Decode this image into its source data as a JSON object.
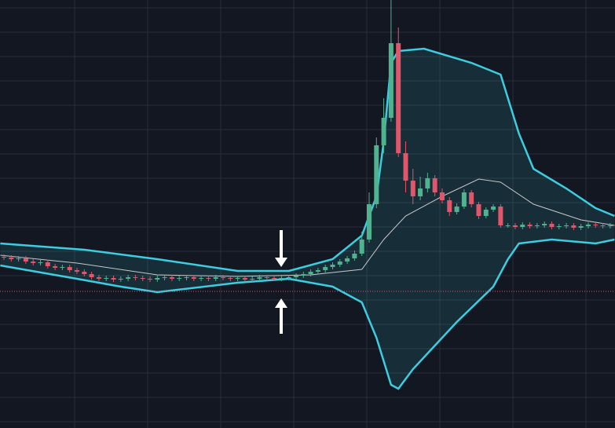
{
  "chart_data": {
    "type": "candlestick",
    "xlim": [
      -0.54,
      83.66
    ],
    "ylim": [
      0,
      545
    ],
    "grid": true,
    "up_color": "#4fb38f",
    "down_color": "#e0566a",
    "band_color": "#3ccde0",
    "middle_color": "#c8c8c8",
    "price_line": 174,
    "price_line_color": "#e0566a",
    "open": [
      218,
      217,
      215,
      216,
      212,
      210,
      211,
      206,
      204,
      205,
      201,
      199,
      196,
      192,
      190,
      191,
      189,
      190,
      192,
      191,
      190,
      189,
      191,
      192,
      190,
      191,
      192,
      190,
      191,
      190,
      192,
      191,
      190,
      191,
      189,
      190,
      192,
      191,
      190,
      191,
      192,
      194,
      196,
      199,
      201,
      205,
      208,
      212,
      216,
      222,
      240,
      285,
      360,
      395,
      490,
      350,
      315,
      295,
      305,
      318,
      300,
      290,
      275,
      282,
      300,
      285,
      270,
      278,
      282,
      258,
      258,
      256,
      259,
      257,
      258,
      260,
      256,
      257,
      258,
      255,
      257,
      259,
      258,
      257
    ],
    "high": [
      221,
      220,
      219,
      219,
      215,
      214,
      214,
      209,
      208,
      208,
      204,
      202,
      199,
      195,
      194,
      194,
      193,
      195,
      195,
      194,
      193,
      194,
      195,
      195,
      194,
      195,
      195,
      194,
      194,
      195,
      195,
      194,
      194,
      194,
      193,
      195,
      195,
      194,
      194,
      195,
      197,
      199,
      202,
      204,
      208,
      211,
      215,
      219,
      226,
      250,
      300,
      370,
      420,
      545,
      510,
      365,
      330,
      320,
      325,
      322,
      305,
      294,
      286,
      304,
      303,
      288,
      281,
      285,
      285,
      261,
      261,
      262,
      262,
      261,
      263,
      263,
      260,
      261,
      261,
      260,
      262,
      262,
      261,
      261
    ],
    "low": [
      214,
      212,
      212,
      209,
      207,
      207,
      203,
      201,
      201,
      198,
      196,
      193,
      189,
      187,
      187,
      186,
      186,
      187,
      188,
      187,
      186,
      186,
      188,
      187,
      187,
      188,
      187,
      187,
      187,
      187,
      188,
      187,
      187,
      186,
      186,
      187,
      188,
      187,
      187,
      188,
      189,
      191,
      193,
      196,
      198,
      202,
      205,
      209,
      213,
      219,
      236,
      280,
      350,
      390,
      345,
      300,
      285,
      290,
      300,
      295,
      286,
      270,
      272,
      279,
      281,
      266,
      267,
      275,
      255,
      255,
      253,
      253,
      254,
      254,
      255,
      253,
      253,
      254,
      252,
      252,
      254,
      255,
      254,
      254
    ],
    "close": [
      217,
      215,
      216,
      212,
      210,
      211,
      206,
      204,
      205,
      201,
      199,
      196,
      192,
      190,
      191,
      189,
      190,
      192,
      191,
      190,
      189,
      191,
      192,
      190,
      191,
      192,
      190,
      191,
      190,
      192,
      191,
      190,
      191,
      189,
      190,
      192,
      191,
      190,
      191,
      192,
      194,
      196,
      199,
      201,
      205,
      208,
      212,
      216,
      222,
      240,
      285,
      360,
      395,
      490,
      350,
      315,
      295,
      305,
      318,
      300,
      290,
      275,
      282,
      300,
      285,
      270,
      278,
      282,
      258,
      258,
      256,
      259,
      257,
      258,
      260,
      256,
      257,
      258,
      255,
      257,
      259,
      258,
      257,
      258
    ],
    "upper_band": {
      "x": [
        -0.5,
        11,
        21,
        32,
        39,
        45,
        49,
        51,
        52,
        53,
        54,
        57.5,
        64,
        68,
        70.5,
        72.5,
        77,
        81,
        83.6
      ],
      "values": [
        235,
        227,
        215,
        200,
        200,
        215,
        245,
        295,
        365,
        465,
        480,
        483,
        465,
        450,
        375,
        330,
        305,
        280,
        270
      ]
    },
    "middle_band": {
      "x": [
        -0.5,
        10,
        21,
        32,
        42,
        49,
        52,
        55,
        60,
        65,
        68,
        72.5,
        79,
        83.6
      ],
      "values": [
        220,
        210,
        195,
        193,
        195,
        202,
        240,
        270,
        295,
        317,
        313,
        285,
        265,
        258
      ]
    },
    "lower_band": {
      "x": [
        -0.5,
        10,
        16,
        21,
        32,
        39,
        45,
        49,
        51,
        53,
        54,
        56,
        62,
        67,
        69,
        70.5,
        75,
        81,
        83.6
      ],
      "values": [
        207,
        190,
        180,
        173,
        185,
        190,
        180,
        160,
        115,
        55,
        50,
        75,
        135,
        180,
        215,
        235,
        240,
        235,
        240
      ]
    }
  }
}
